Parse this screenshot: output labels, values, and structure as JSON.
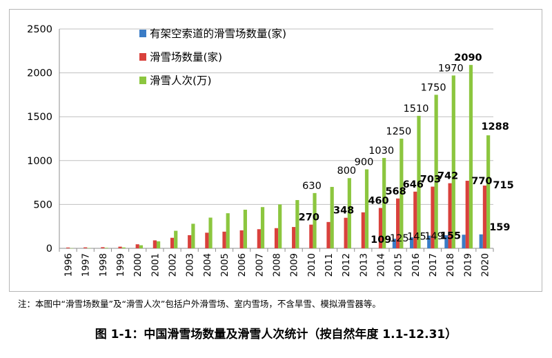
{
  "note": "注：本图中“滑雪场数量”及“滑雪人次”包括户外滑雪场、室内雪场，不含旱雪、模拟滑雪器等。",
  "caption": "图 1-1：中国滑雪场数量及滑雪人次统计（按自然年度 1.1-12.31）",
  "colors": {
    "blue": "#3a7cc6",
    "red": "#d9413c",
    "green": "#8cc63f",
    "grid": "#bfbfbf",
    "axis": "#8c8c8c"
  },
  "chart_data": {
    "type": "bar",
    "categories": [
      "1996",
      "1997",
      "1998",
      "1999",
      "2000",
      "2001",
      "2002",
      "2003",
      "2004",
      "2005",
      "2006",
      "2007",
      "2008",
      "2009",
      "2010",
      "2011",
      "2012",
      "2013",
      "2014",
      "2015",
      "2016",
      "2017",
      "2018",
      "2019",
      "2020"
    ],
    "ylim": [
      0,
      2500
    ],
    "yticks": [
      0,
      500,
      1000,
      1500,
      2000,
      2500
    ],
    "grid": true,
    "legend_position": "top-left",
    "series": [
      {
        "name": "有架空索道的滑雪场数量(家)",
        "color": "#3a7cc6",
        "values": [
          null,
          null,
          null,
          null,
          null,
          null,
          null,
          null,
          null,
          null,
          null,
          null,
          null,
          null,
          null,
          null,
          null,
          null,
          null,
          109,
          125,
          145,
          149,
          155,
          159
        ]
      },
      {
        "name": "滑雪场数量(家)",
        "color": "#d9413c",
        "values": [
          9,
          11,
          13,
          19,
          46,
          91,
          120,
          150,
          178,
          190,
          205,
          218,
          230,
          243,
          270,
          300,
          348,
          410,
          460,
          568,
          646,
          703,
          742,
          770,
          715
        ]
      },
      {
        "name": "滑雪人次(万)",
        "color": "#8cc63f",
        "values": [
          2,
          4,
          6,
          10,
          35,
          80,
          200,
          280,
          350,
          400,
          440,
          470,
          500,
          550,
          630,
          700,
          800,
          900,
          1030,
          1250,
          1510,
          1750,
          1970,
          2090,
          1288
        ]
      }
    ],
    "data_labels": [
      {
        "series": 0,
        "index": 19,
        "text": "109",
        "bold": true
      },
      {
        "series": 0,
        "index": 20,
        "text": "125",
        "bold": false
      },
      {
        "series": 0,
        "index": 21,
        "text": "145",
        "bold": false
      },
      {
        "series": 0,
        "index": 22,
        "text": "149",
        "bold": false
      },
      {
        "series": 0,
        "index": 23,
        "text": "155",
        "bold": true
      },
      {
        "series": 0,
        "index": 24,
        "text": "159",
        "bold": true
      },
      {
        "series": 1,
        "index": 14,
        "text": "270",
        "bold": true
      },
      {
        "series": 1,
        "index": 16,
        "text": "348",
        "bold": true
      },
      {
        "series": 1,
        "index": 18,
        "text": "460",
        "bold": true
      },
      {
        "series": 1,
        "index": 19,
        "text": "568",
        "bold": true
      },
      {
        "series": 1,
        "index": 20,
        "text": "646",
        "bold": true
      },
      {
        "series": 1,
        "index": 21,
        "text": "703",
        "bold": true
      },
      {
        "series": 1,
        "index": 22,
        "text": "742",
        "bold": true
      },
      {
        "series": 1,
        "index": 23,
        "text": "770",
        "bold": true
      },
      {
        "series": 1,
        "index": 24,
        "text": "715",
        "bold": true
      },
      {
        "series": 2,
        "index": 14,
        "text": "630",
        "bold": false
      },
      {
        "series": 2,
        "index": 16,
        "text": "800",
        "bold": false
      },
      {
        "series": 2,
        "index": 17,
        "text": "900",
        "bold": false
      },
      {
        "series": 2,
        "index": 18,
        "text": "1030",
        "bold": false
      },
      {
        "series": 2,
        "index": 19,
        "text": "1250",
        "bold": false
      },
      {
        "series": 2,
        "index": 20,
        "text": "1510",
        "bold": false
      },
      {
        "series": 2,
        "index": 21,
        "text": "1750",
        "bold": false
      },
      {
        "series": 2,
        "index": 22,
        "text": "1970",
        "bold": false
      },
      {
        "series": 2,
        "index": 23,
        "text": "2090",
        "bold": true
      },
      {
        "series": 2,
        "index": 24,
        "text": "1288",
        "bold": true
      }
    ]
  }
}
